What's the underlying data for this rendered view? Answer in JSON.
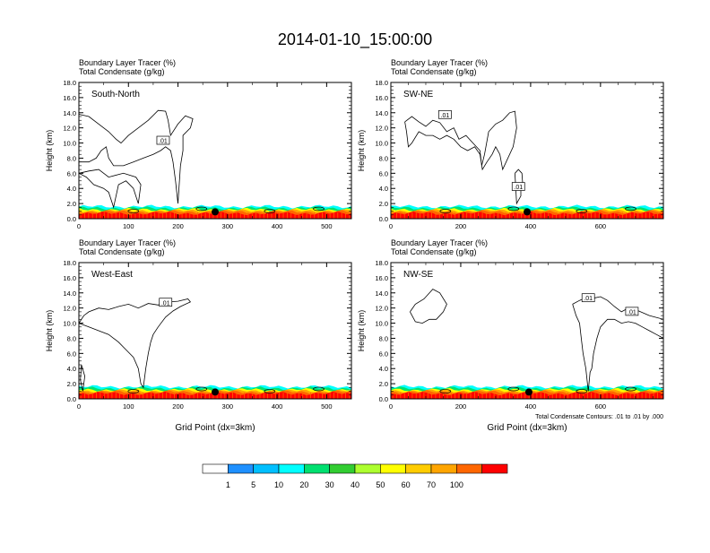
{
  "title": "2014-01-10_15:00:00",
  "colorbar": {
    "colors": [
      "#ffffff",
      "#1e90ff",
      "#00bfff",
      "#00ffff",
      "#00e070",
      "#32cd32",
      "#adff2f",
      "#ffff00",
      "#ffcc00",
      "#ffa500",
      "#ff6600",
      "#ff0000"
    ],
    "labels": [
      "1",
      "5",
      "10",
      "20",
      "30",
      "40",
      "50",
      "60",
      "70",
      "100"
    ]
  },
  "chart_data": [
    {
      "type": "heatmap",
      "panel_label": "South-North",
      "header": [
        "Boundary Layer Tracer    (%)",
        "Total Condensate    (g/kg)"
      ],
      "ylabel": "Height (km)",
      "xlabel": "",
      "ylim": [
        0,
        18
      ],
      "xlim": [
        0,
        550
      ],
      "yticks": [
        "0.0",
        "2.0",
        "4.0",
        "6.0",
        "8.0",
        "10.0",
        "12.0",
        "14.0",
        "16.0",
        "18.0"
      ],
      "xticks": [
        {
          "v": 0,
          "t": "0"
        },
        {
          "v": 100,
          "t": "100"
        },
        {
          "v": 200,
          "t": "200"
        },
        {
          "v": 300,
          "t": "300"
        },
        {
          "v": 400,
          "t": "400"
        },
        {
          "v": 500,
          "t": "500"
        }
      ],
      "marker_x": 275,
      "contour_labels": [
        {
          "x": 170,
          "y": 10.3,
          "t": ".01"
        }
      ],
      "cloud": [
        [
          0,
          13.8
        ],
        [
          20,
          13.5
        ],
        [
          40,
          12.5
        ],
        [
          60,
          11.5
        ],
        [
          75,
          10.5
        ],
        [
          85,
          10.0
        ],
        [
          100,
          11.0
        ],
        [
          120,
          12.0
        ],
        [
          140,
          13.0
        ],
        [
          160,
          14.3
        ],
        [
          175,
          14.2
        ],
        [
          180,
          13.0
        ],
        [
          185,
          11.0
        ],
        [
          200,
          12.5
        ],
        [
          215,
          13.6
        ],
        [
          230,
          13.2
        ],
        [
          225,
          12.0
        ],
        [
          210,
          11.0
        ],
        [
          210,
          9.0
        ],
        [
          205,
          7.0
        ],
        [
          200,
          2.0
        ],
        [
          195,
          5.0
        ],
        [
          190,
          7.5
        ],
        [
          185,
          9.0
        ],
        [
          175,
          9.5
        ],
        [
          165,
          9.0
        ],
        [
          150,
          8.5
        ],
        [
          130,
          8.0
        ],
        [
          110,
          7.5
        ],
        [
          90,
          7.0
        ],
        [
          70,
          7.0
        ],
        [
          60,
          8.0
        ],
        [
          55,
          9.5
        ],
        [
          45,
          9.0
        ],
        [
          35,
          8.0
        ],
        [
          20,
          7.5
        ],
        [
          0,
          7.5
        ]
      ],
      "cloud2": [
        [
          0,
          6.0
        ],
        [
          15,
          5.5
        ],
        [
          30,
          4.5
        ],
        [
          50,
          4.0
        ],
        [
          60,
          3.5
        ],
        [
          70,
          1.5
        ],
        [
          80,
          4.5
        ],
        [
          95,
          5.0
        ],
        [
          110,
          4.0
        ],
        [
          120,
          2.0
        ],
        [
          125,
          4.5
        ],
        [
          115,
          5.5
        ],
        [
          90,
          6.0
        ],
        [
          60,
          5.5
        ],
        [
          40,
          6.5
        ],
        [
          20,
          6.3
        ],
        [
          0,
          6.0
        ]
      ]
    },
    {
      "type": "heatmap",
      "panel_label": "SW-NE",
      "header": [
        "Boundary Layer Tracer    (%)",
        "Total Condensate    (g/kg)"
      ],
      "ylabel": "Height (km)",
      "xlabel": "",
      "ylim": [
        0,
        18
      ],
      "xlim": [
        0,
        780
      ],
      "yticks": [
        "0.0",
        "2.0",
        "4.0",
        "6.0",
        "8.0",
        "10.0",
        "12.0",
        "14.0",
        "16.0",
        "18.0"
      ],
      "xticks": [
        {
          "v": 0,
          "t": "0"
        },
        {
          "v": 200,
          "t": "200"
        },
        {
          "v": 400,
          "t": "400"
        },
        {
          "v": 600,
          "t": "600"
        }
      ],
      "marker_x": 390,
      "contour_labels": [
        {
          "x": 155,
          "y": 13.7,
          "t": ".01"
        },
        {
          "x": 365,
          "y": 4.2,
          "t": ".01"
        }
      ],
      "cloud": [
        [
          40,
          12.8
        ],
        [
          60,
          13.5
        ],
        [
          80,
          12.8
        ],
        [
          100,
          12.2
        ],
        [
          120,
          13.0
        ],
        [
          140,
          12.7
        ],
        [
          160,
          11.5
        ],
        [
          180,
          12.0
        ],
        [
          195,
          10.5
        ],
        [
          215,
          11.0
        ],
        [
          235,
          10.0
        ],
        [
          255,
          9.0
        ],
        [
          260,
          7.0
        ],
        [
          268,
          8.5
        ],
        [
          280,
          11.5
        ],
        [
          300,
          12.5
        ],
        [
          320,
          13.0
        ],
        [
          340,
          14.0
        ],
        [
          355,
          14.2
        ],
        [
          360,
          12.0
        ],
        [
          350,
          9.5
        ],
        [
          330,
          7.5
        ],
        [
          320,
          6.5
        ],
        [
          312,
          8.5
        ],
        [
          300,
          9.5
        ],
        [
          290,
          8.5
        ],
        [
          275,
          7.5
        ],
        [
          262,
          6.5
        ],
        [
          255,
          8.5
        ],
        [
          240,
          9.5
        ],
        [
          220,
          9.0
        ],
        [
          200,
          9.5
        ],
        [
          180,
          10.5
        ],
        [
          160,
          11.0
        ],
        [
          140,
          10.5
        ],
        [
          120,
          11.0
        ],
        [
          100,
          11.0
        ],
        [
          80,
          11.5
        ],
        [
          60,
          10.0
        ],
        [
          50,
          9.5
        ],
        [
          45,
          11.5
        ],
        [
          40,
          12.8
        ]
      ],
      "cloud2": [
        [
          355,
          6.0
        ],
        [
          365,
          6.5
        ],
        [
          375,
          6.0
        ],
        [
          378,
          4.2
        ],
        [
          372,
          4.0
        ],
        [
          372,
          3.0
        ],
        [
          360,
          2.0
        ],
        [
          355,
          6.0
        ]
      ]
    },
    {
      "type": "heatmap",
      "panel_label": "West-East",
      "header": [
        "Boundary Layer Tracer    (%)",
        "Total Condensate    (g/kg)"
      ],
      "ylabel": "Height (km)",
      "xlabel": "Grid Point (dx=3km)",
      "ylim": [
        0,
        18
      ],
      "xlim": [
        0,
        550
      ],
      "yticks": [
        "0.0",
        "2.0",
        "4.0",
        "6.0",
        "8.0",
        "10.0",
        "12.0",
        "14.0",
        "16.0",
        "18.0"
      ],
      "xticks": [
        {
          "v": 0,
          "t": "0"
        },
        {
          "v": 100,
          "t": "100"
        },
        {
          "v": 200,
          "t": "200"
        },
        {
          "v": 300,
          "t": "300"
        },
        {
          "v": 400,
          "t": "400"
        },
        {
          "v": 500,
          "t": "500"
        }
      ],
      "marker_x": 275,
      "contour_labels": [
        {
          "x": 175,
          "y": 12.7,
          "t": ".01"
        }
      ],
      "cloud": [
        [
          0,
          10.0
        ],
        [
          10,
          11.0
        ],
        [
          20,
          11.5
        ],
        [
          40,
          12.0
        ],
        [
          60,
          11.8
        ],
        [
          80,
          12.2
        ],
        [
          100,
          12.5
        ],
        [
          120,
          12.0
        ],
        [
          140,
          12.6
        ],
        [
          160,
          12.4
        ],
        [
          180,
          12.8
        ],
        [
          200,
          12.9
        ],
        [
          220,
          13.2
        ],
        [
          225,
          12.8
        ],
        [
          205,
          12.2
        ],
        [
          190,
          11.6
        ],
        [
          175,
          10.8
        ],
        [
          160,
          9.5
        ],
        [
          150,
          8.5
        ],
        [
          145,
          7.5
        ],
        [
          140,
          6.0
        ],
        [
          135,
          4.0
        ],
        [
          130,
          1.5
        ],
        [
          125,
          2.0
        ],
        [
          120,
          4.0
        ],
        [
          110,
          5.5
        ],
        [
          95,
          6.5
        ],
        [
          80,
          7.5
        ],
        [
          60,
          8.5
        ],
        [
          40,
          9.0
        ],
        [
          20,
          9.5
        ],
        [
          0,
          10.0
        ]
      ],
      "cloud2": [
        [
          5,
          4.5
        ],
        [
          12,
          3.0
        ],
        [
          8,
          1.0
        ],
        [
          3,
          2.5
        ],
        [
          5,
          4.5
        ]
      ]
    },
    {
      "type": "heatmap",
      "panel_label": "NW-SE",
      "header": [
        "Boundary Layer Tracer    (%)",
        "Total Condensate    (g/kg)"
      ],
      "ylabel": "Height (km)",
      "xlabel": "Grid Point (dx=3km)",
      "ylim": [
        0,
        18
      ],
      "xlim": [
        0,
        780
      ],
      "yticks": [
        "0.0",
        "2.0",
        "4.0",
        "6.0",
        "8.0",
        "10.0",
        "12.0",
        "14.0",
        "16.0",
        "18.0"
      ],
      "xticks": [
        {
          "v": 0,
          "t": "0"
        },
        {
          "v": 200,
          "t": "200"
        },
        {
          "v": 400,
          "t": "400"
        },
        {
          "v": 600,
          "t": "600"
        }
      ],
      "marker_x": 395,
      "contour_labels": [
        {
          "x": 565,
          "y": 13.3,
          "t": ".01"
        },
        {
          "x": 690,
          "y": 11.5,
          "t": ".01"
        }
      ],
      "cloud": [
        [
          520,
          12.5
        ],
        [
          540,
          13.0
        ],
        [
          560,
          13.4
        ],
        [
          580,
          13.3
        ],
        [
          600,
          13.5
        ],
        [
          620,
          13.0
        ],
        [
          640,
          12.2
        ],
        [
          660,
          11.5
        ],
        [
          680,
          12.0
        ],
        [
          700,
          11.8
        ],
        [
          720,
          11.4
        ],
        [
          740,
          11.0
        ],
        [
          780,
          10.5
        ],
        [
          780,
          8.0
        ],
        [
          760,
          8.5
        ],
        [
          740,
          9.0
        ],
        [
          720,
          9.5
        ],
        [
          700,
          10.0
        ],
        [
          680,
          10.2
        ],
        [
          660,
          10.0
        ],
        [
          640,
          10.5
        ],
        [
          620,
          10.5
        ],
        [
          600,
          9.5
        ],
        [
          590,
          8.0
        ],
        [
          580,
          6.0
        ],
        [
          575,
          4.0
        ],
        [
          570,
          3.5
        ],
        [
          565,
          1.0
        ],
        [
          558,
          4.0
        ],
        [
          550,
          6.0
        ],
        [
          545,
          8.0
        ],
        [
          540,
          10.0
        ],
        [
          530,
          11.0
        ],
        [
          520,
          12.5
        ]
      ],
      "cloud2": [
        [
          55,
          11.5
        ],
        [
          70,
          12.5
        ],
        [
          95,
          13.2
        ],
        [
          120,
          14.5
        ],
        [
          140,
          14.0
        ],
        [
          160,
          12.5
        ],
        [
          150,
          11.5
        ],
        [
          130,
          10.5
        ],
        [
          110,
          10.5
        ],
        [
          90,
          10.0
        ],
        [
          70,
          10.2
        ],
        [
          55,
          11.5
        ]
      ],
      "footnote": "Total Condensate Contours: .01 to .01 by .000"
    }
  ]
}
